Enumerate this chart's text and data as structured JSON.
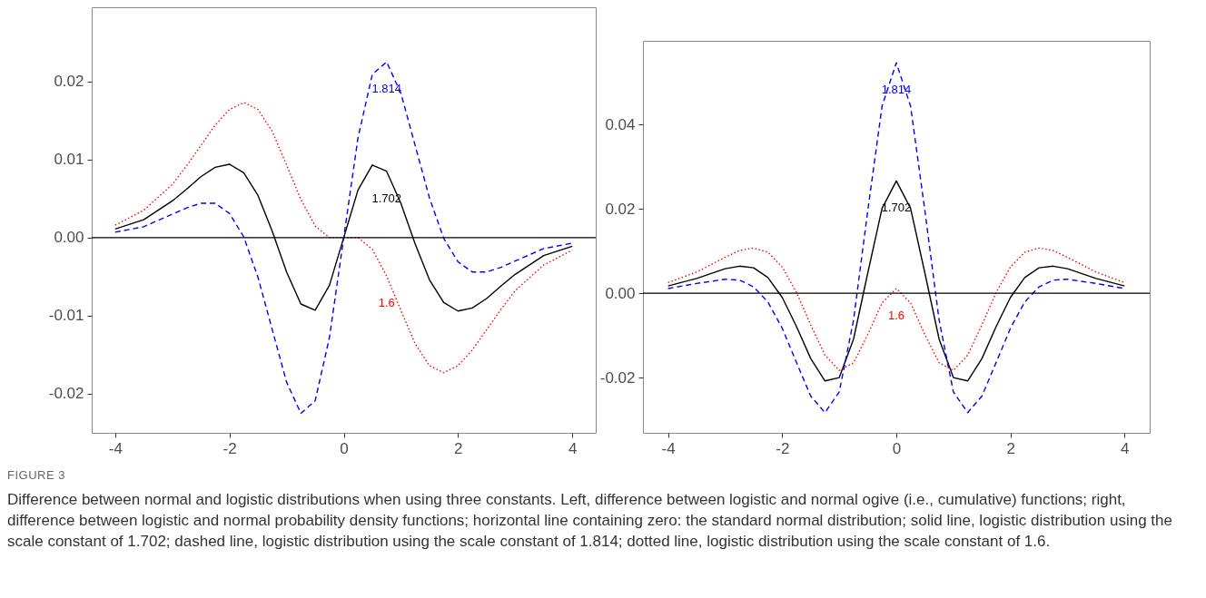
{
  "chart_data": [
    {
      "type": "line",
      "xlim": [
        -4.41,
        4.41
      ],
      "ylim": [
        -0.025,
        0.0295
      ],
      "xticks": [
        -4,
        -2,
        0,
        2,
        4
      ],
      "yticks": [
        -0.02,
        -0.01,
        {
          "value": 0,
          "label": "0.00"
        },
        0.01,
        0.02
      ],
      "x": [
        -4,
        -3.5,
        -3,
        -2.75,
        -2.5,
        -2.25,
        -2,
        -1.75,
        -1.5,
        -1.25,
        -1,
        -0.75,
        -0.5,
        -0.25,
        0,
        0.25,
        0.5,
        0.75,
        1,
        1.25,
        1.5,
        1.75,
        2,
        2.25,
        2.5,
        2.75,
        3,
        3.5,
        4
      ],
      "series": [
        {
          "name": "1.702",
          "color": "#000000",
          "line_style": "solid",
          "values": [
            0.0011,
            0.0023,
            0.0047,
            0.0062,
            0.0078,
            0.009,
            0.0094,
            0.0083,
            0.0054,
            0.0008,
            -0.0044,
            -0.0085,
            -0.0093,
            -0.0061,
            0,
            0.0061,
            0.0093,
            0.0085,
            0.0044,
            -0.0008,
            -0.0054,
            -0.0083,
            -0.0094,
            -0.009,
            -0.0078,
            -0.0062,
            -0.0047,
            -0.0023,
            -0.0011
          ]
        },
        {
          "name": "1.814",
          "color": "#0000ff",
          "line_style": "dashed",
          "values": [
            0.0007,
            0.0014,
            0.003,
            0.0038,
            0.0044,
            0.0044,
            0.0031,
            0.0001,
            -0.0051,
            -0.0118,
            -0.0185,
            -0.0225,
            -0.0209,
            -0.0128,
            0,
            0.0128,
            0.0209,
            0.0225,
            0.0185,
            0.0118,
            0.0051,
            -0.0001,
            -0.0031,
            -0.0044,
            -0.0044,
            -0.0038,
            -0.003,
            -0.0014,
            -0.0007
          ]
        },
        {
          "name": "1.6",
          "color": "#ff0000",
          "line_style": "dotted",
          "values": [
            0.0016,
            0.0035,
            0.0068,
            0.0092,
            0.0118,
            0.0144,
            0.0164,
            0.0173,
            0.0164,
            0.0136,
            0.0093,
            0.0049,
            0.0015,
            0,
            0,
            0,
            -0.0015,
            -0.0049,
            -0.0093,
            -0.0136,
            -0.0164,
            -0.0173,
            -0.0164,
            -0.0144,
            -0.0118,
            -0.0092,
            -0.0068,
            -0.0035,
            -0.0016
          ]
        }
      ],
      "ref_lines": [
        {
          "axis": "y",
          "value": 0,
          "color": "#000000",
          "line_style": "solid"
        }
      ],
      "annotations": [
        "FIGURE 3",
        "Difference between normal and logistic distributions when using three constants. Left, difference between logistic and normal ogive (i.e., cumulative) functions; right, difference between logistic and normal probability density functions; horizontal line containing zero: the standard normal distribution; solid line, logistic distribution using the scale constant of 1.702; dashed line, logistic distribution using the scale constant of 1.814; dotted line, logistic distribution using the scale constant of 1.6."
      ]
    },
    {
      "type": "line",
      "xlim": [
        -4.44,
        4.44
      ],
      "ylim": [
        -0.0331,
        0.0598
      ],
      "xticks": [
        -4,
        -2,
        0,
        2,
        4
      ],
      "yticks": [
        -0.02,
        {
          "value": 0,
          "label": "0.00"
        },
        0.02,
        0.04
      ],
      "x": [
        -4,
        -3.5,
        -3,
        -2.75,
        -2.5,
        -2.25,
        -2,
        -1.75,
        -1.5,
        -1.25,
        -1,
        -0.75,
        -0.5,
        -0.25,
        0,
        0.25,
        0.5,
        0.75,
        1,
        1.25,
        1.5,
        1.75,
        2,
        2.25,
        2.5,
        2.75,
        3,
        3.5,
        4
      ],
      "series": [
        {
          "name": "1.702",
          "color": "#000000",
          "line_style": "solid",
          "values": [
            0.0017,
            0.0035,
            0.0058,
            0.0064,
            0.006,
            0.0037,
            -0.001,
            -0.0079,
            -0.0155,
            -0.0208,
            -0.02,
            -0.0109,
            0.0048,
            0.0201,
            0.0266,
            0.0201,
            0.0048,
            -0.0109,
            -0.02,
            -0.0208,
            -0.0155,
            -0.0079,
            -0.001,
            0.0037,
            0.006,
            0.0064,
            0.0058,
            0.0035,
            0.0017
          ]
        },
        {
          "name": "1.814",
          "color": "#0000ff",
          "line_style": "dashed",
          "values": [
            0.0011,
            0.0023,
            0.0033,
            0.0031,
            0.0015,
            -0.0021,
            -0.0083,
            -0.0164,
            -0.0244,
            -0.0283,
            -0.0234,
            -0.0064,
            0.0196,
            0.0443,
            0.0546,
            0.0443,
            0.0196,
            -0.0064,
            -0.0234,
            -0.0283,
            -0.0244,
            -0.0164,
            -0.0083,
            -0.0021,
            0.0015,
            0.0031,
            0.0033,
            0.0023,
            0.0011
          ]
        },
        {
          "name": "1.6",
          "color": "#ff0000",
          "line_style": "dotted",
          "values": [
            0.0025,
            0.005,
            0.0085,
            0.0101,
            0.0107,
            0.0097,
            0.0062,
            0.0002,
            -0.0075,
            -0.0147,
            -0.0183,
            -0.0165,
            -0.0098,
            -0.0023,
            0.0011,
            -0.0023,
            -0.0098,
            -0.0165,
            -0.0183,
            -0.0147,
            -0.0075,
            0.0002,
            0.0062,
            0.0097,
            0.0107,
            0.0101,
            0.0085,
            0.005,
            0.0025
          ]
        }
      ],
      "ref_lines": [
        {
          "axis": "y",
          "value": 0,
          "color": "#000000",
          "line_style": "solid"
        }
      ]
    }
  ]
}
